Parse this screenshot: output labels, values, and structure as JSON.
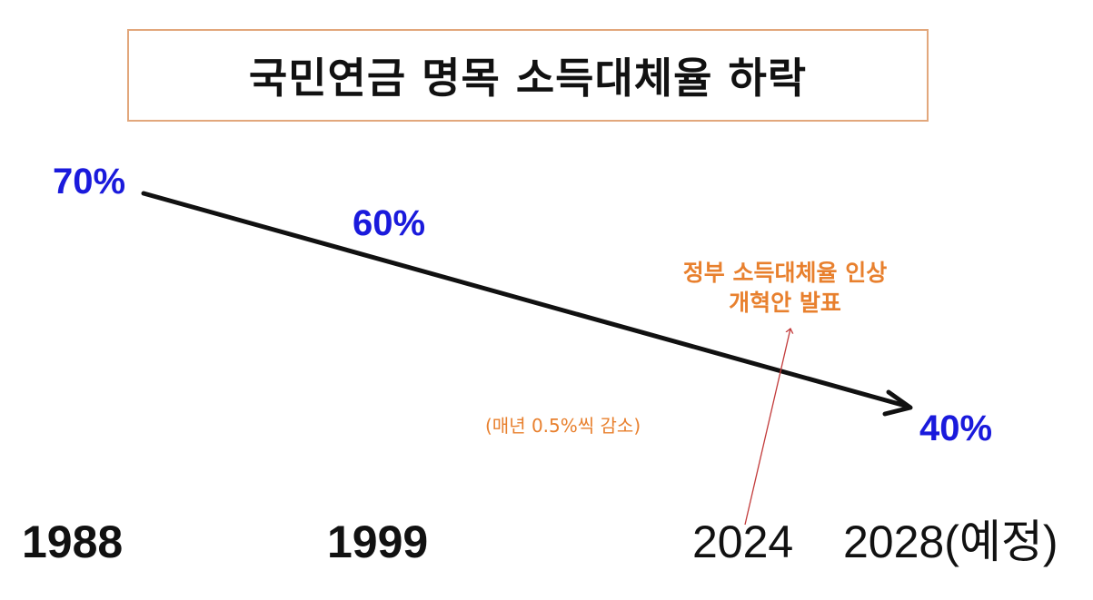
{
  "title": "국민연금 명목 소득대체율 하락",
  "rates": {
    "r1988": "70%",
    "r1999": "60%",
    "r2028": "40%"
  },
  "years": {
    "y1988": "1988",
    "y1999": "1999",
    "y2024": "2024",
    "y2028": "2028(예정)"
  },
  "annotations": {
    "reform_line1": "정부 소득대체율 인상",
    "reform_line2": "개혁안 발표",
    "decline_note": "(매년 0.5%씩 감소)"
  },
  "colors": {
    "rate_blue": "#1a1adc",
    "note_orange": "#e8802e",
    "title_border": "#e2a77c",
    "pointer_red": "#c23a3a"
  }
}
